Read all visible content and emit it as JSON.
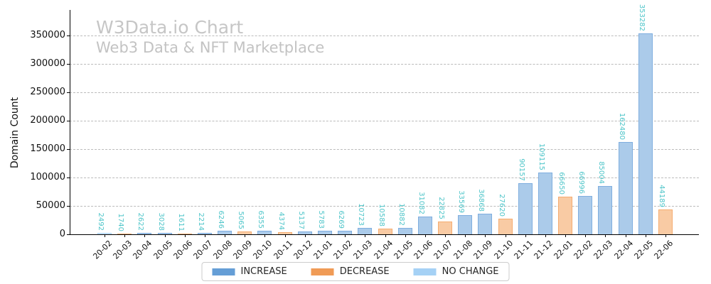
{
  "chart_data": {
    "type": "bar",
    "title": "W3Data.io Chart",
    "subtitle": "Web3 Data & NFT Marketplace",
    "ylabel": "Domain Count",
    "xlabel": "",
    "categories": [
      "20-02",
      "20-03",
      "20-04",
      "20-05",
      "20-06",
      "20-07",
      "20-08",
      "20-09",
      "20-10",
      "20-11",
      "20-12",
      "21-01",
      "21-02",
      "21-03",
      "21-04",
      "21-05",
      "21-06",
      "21-07",
      "21-08",
      "21-09",
      "21-10",
      "21-11",
      "21-12",
      "22-01",
      "22-02",
      "22-03",
      "22-04",
      "22-05",
      "22-06"
    ],
    "values": [
      2492,
      1740,
      2622,
      3028,
      1611,
      2214,
      6246,
      5065,
      6355,
      4374,
      5137,
      5783,
      6269,
      10723,
      10588,
      10882,
      31082,
      22825,
      33569,
      36868,
      27620,
      90157,
      109115,
      66650,
      66996,
      85004,
      162480,
      353282,
      44189
    ],
    "statuses": [
      "no_change",
      "decrease",
      "increase",
      "increase",
      "decrease",
      "increase",
      "increase",
      "decrease",
      "increase",
      "decrease",
      "increase",
      "increase",
      "increase",
      "increase",
      "decrease",
      "increase",
      "increase",
      "decrease",
      "increase",
      "increase",
      "decrease",
      "increase",
      "increase",
      "decrease",
      "increase",
      "increase",
      "increase",
      "increase",
      "decrease"
    ],
    "yticks": [
      0,
      50000,
      100000,
      150000,
      200000,
      250000,
      300000,
      350000
    ],
    "ylim": [
      0,
      395000
    ],
    "grid": "horizontal-dashed",
    "legend_position": "bottom-center",
    "legend": [
      {
        "key": "increase",
        "label": "INCREASE"
      },
      {
        "key": "decrease",
        "label": "DECREASE"
      },
      {
        "key": "no_change",
        "label": "NO CHANGE"
      }
    ],
    "colors": {
      "increase": {
        "legend": "#659ED6",
        "fill": "#ABCBEA",
        "edge": "#7FAEDF"
      },
      "decrease": {
        "legend": "#F09B56",
        "fill": "#F9CBA4",
        "edge": "#F5AC70"
      },
      "no_change": {
        "legend": "#A5D1F5",
        "fill": "#CFE5FA",
        "edge": "#AFD7F7"
      },
      "value_label": "#4EC5C9",
      "title": "#C6C6C6",
      "grid": "#BBBBBB",
      "axis": "#000000"
    }
  }
}
